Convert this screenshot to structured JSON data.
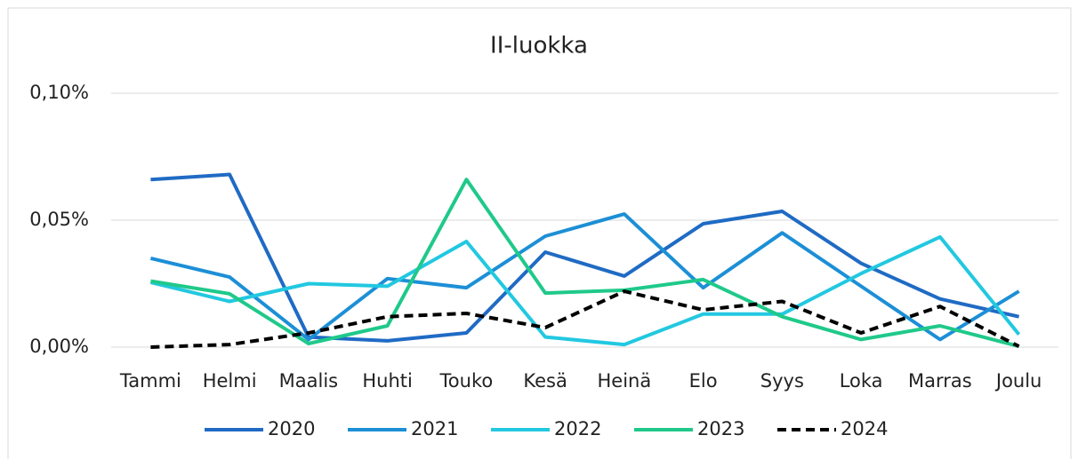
{
  "chart_data": {
    "type": "line",
    "title": "II-luokka",
    "categories": [
      "Tammi",
      "Helmi",
      "Maalis",
      "Huhti",
      "Touko",
      "Kesä",
      "Heinä",
      "Elo",
      "Syys",
      "Loka",
      "Marras",
      "Joulu"
    ],
    "series": [
      {
        "name": "2020",
        "color": "#1f6bc4",
        "values": [
          0.066,
          0.068,
          0.004,
          0.0025,
          0.0056,
          0.0374,
          0.028,
          0.0486,
          0.0535,
          0.033,
          0.019,
          0.012
        ]
      },
      {
        "name": "2021",
        "color": "#1c8fd6",
        "values": [
          0.035,
          0.0276,
          0.003,
          0.027,
          0.0234,
          0.0437,
          0.0524,
          0.0234,
          0.045,
          0.024,
          0.003,
          0.022
        ]
      },
      {
        "name": "2022",
        "color": "#22c8e0",
        "values": [
          0.0255,
          0.018,
          0.025,
          0.024,
          0.0416,
          0.004,
          0.001,
          0.013,
          0.013,
          0.029,
          0.0434,
          0.005
        ]
      },
      {
        "name": "2023",
        "color": "#1fc98a",
        "values": [
          0.026,
          0.021,
          0.0014,
          0.0084,
          0.066,
          0.0213,
          0.0224,
          0.0266,
          0.012,
          0.003,
          0.0084,
          0.0003
        ]
      },
      {
        "name": "2024",
        "color": "#000000",
        "dashed": true,
        "values": [
          0,
          0.001,
          0.0056,
          0.012,
          0.0133,
          0.0077,
          0.022,
          0.0147,
          0.018,
          0.0056,
          0.016,
          0.0003
        ]
      }
    ],
    "ylim": [
      0,
      0.1
    ],
    "yticks": [
      {
        "value": 0,
        "label": "0,00%"
      },
      {
        "value": 0.05,
        "label": "0,05%"
      },
      {
        "value": 0.1,
        "label": "0,10%"
      }
    ],
    "grid": true,
    "legend": "bottom"
  }
}
